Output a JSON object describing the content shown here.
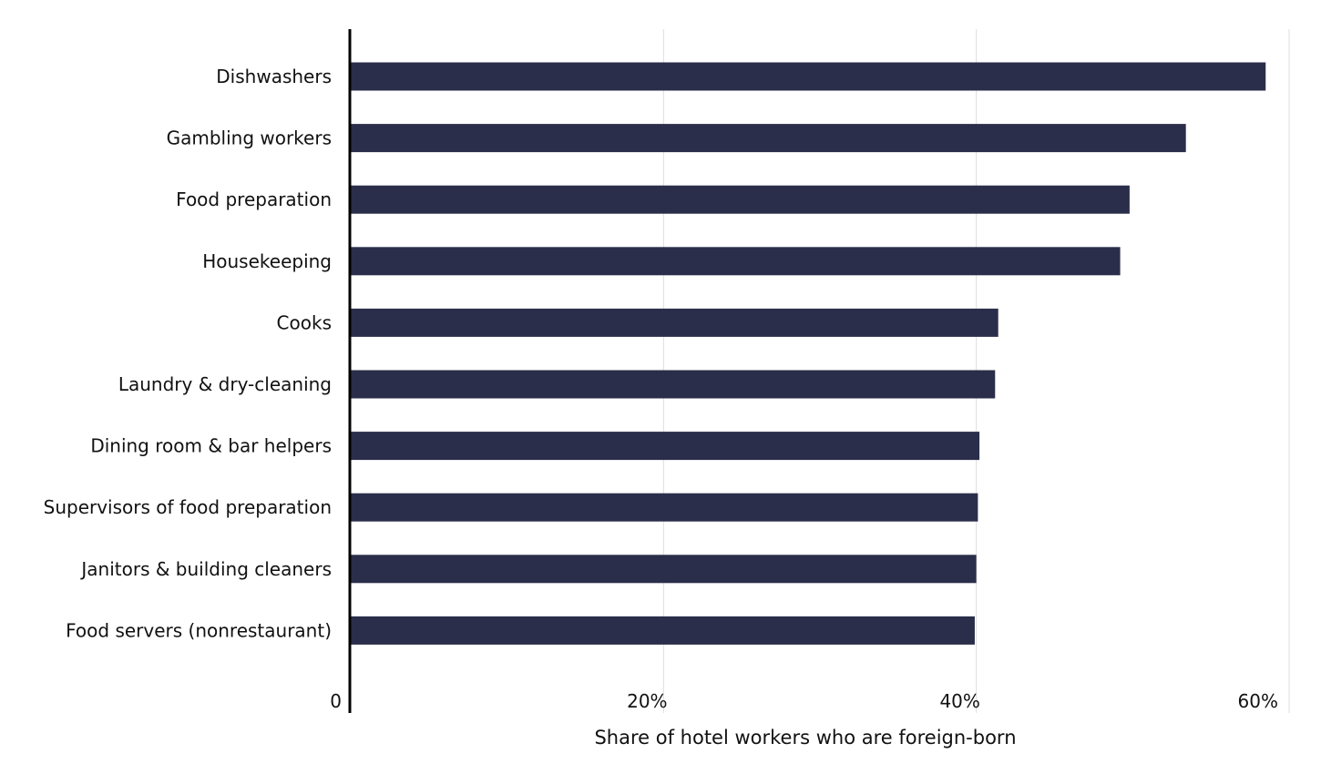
{
  "chart_data": {
    "type": "bar",
    "orientation": "horizontal",
    "categories": [
      "Dishwashers",
      "Gambling workers",
      "Food preparation",
      "Housekeeping",
      "Cooks",
      "Laundry & dry-cleaning",
      "Dining room & bar helpers",
      "Supervisors of food preparation",
      "Janitors & building cleaners",
      "Food servers (nonrestaurant)"
    ],
    "values": [
      58.5,
      53.4,
      49.8,
      49.2,
      41.4,
      41.2,
      40.2,
      40.1,
      40.0,
      39.9
    ],
    "xlabel": "Share of hotel workers who are foreign-born",
    "ylabel": "",
    "xlim": [
      0,
      60
    ],
    "ticks": [
      {
        "value": 0,
        "label": "0"
      },
      {
        "value": 20,
        "label": "20%"
      },
      {
        "value": 40,
        "label": "40%"
      },
      {
        "value": 60,
        "label": "60%"
      }
    ],
    "grid": true,
    "bar_color": "#2b2e4a"
  }
}
